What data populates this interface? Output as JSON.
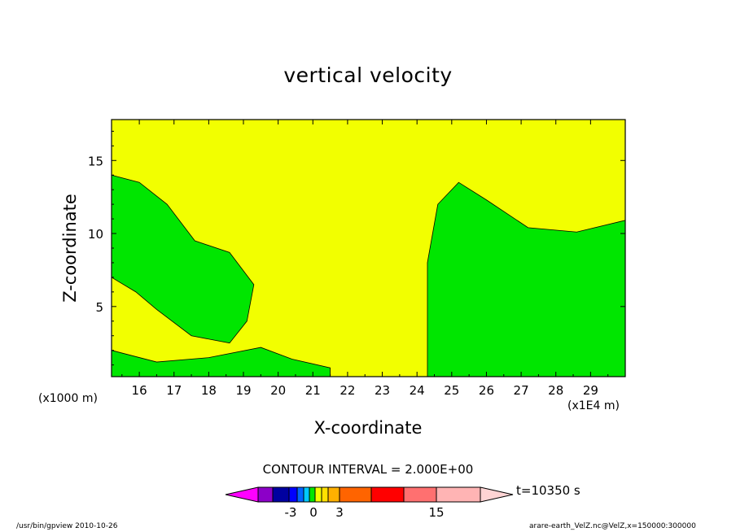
{
  "chart_data": {
    "type": "heatmap",
    "title": "vertical velocity",
    "xlabel": "X-coordinate",
    "ylabel": "Z-coordinate",
    "x_unit": "(x1E4 m)",
    "y_unit": "(x1000 m)",
    "xlim": [
      15.2,
      30.0
    ],
    "ylim": [
      0.2,
      17.8
    ],
    "x_ticks": [
      16,
      17,
      18,
      19,
      20,
      21,
      22,
      23,
      24,
      25,
      26,
      27,
      28,
      29
    ],
    "y_ticks": [
      5,
      10,
      15
    ],
    "contour_interval_label": "CONTOUR INTERVAL = 2.000E+00",
    "colorbar_labels": [
      "-3",
      "0",
      "3",
      "15"
    ],
    "colors": {
      "yellow": "#f2ff00",
      "green": "#00e600",
      "light_orange": "#ffb000",
      "orange": "#ff6400",
      "red": "#ff0000",
      "cyan": "#00ffff",
      "blue": "#0064ff",
      "navy": "#0000a0",
      "dark": "#300020"
    },
    "colorbar_colors": [
      "#ff00ff",
      "#8c00c8",
      "#0000a0",
      "#0000ff",
      "#0064ff",
      "#00c8ff",
      "#00e600",
      "#f2ff00",
      "#ffe000",
      "#ffb000",
      "#ff6400",
      "#ff0000",
      "#ff7070",
      "#ffb4b4",
      "#ffd4d4"
    ]
  },
  "annotations": {
    "time": "t=10350 s",
    "footer_left": "/usr/bin/gpview   2010-10-26",
    "footer_right": "arare-earth_VelZ.nc@VelZ,x=150000:300000"
  }
}
